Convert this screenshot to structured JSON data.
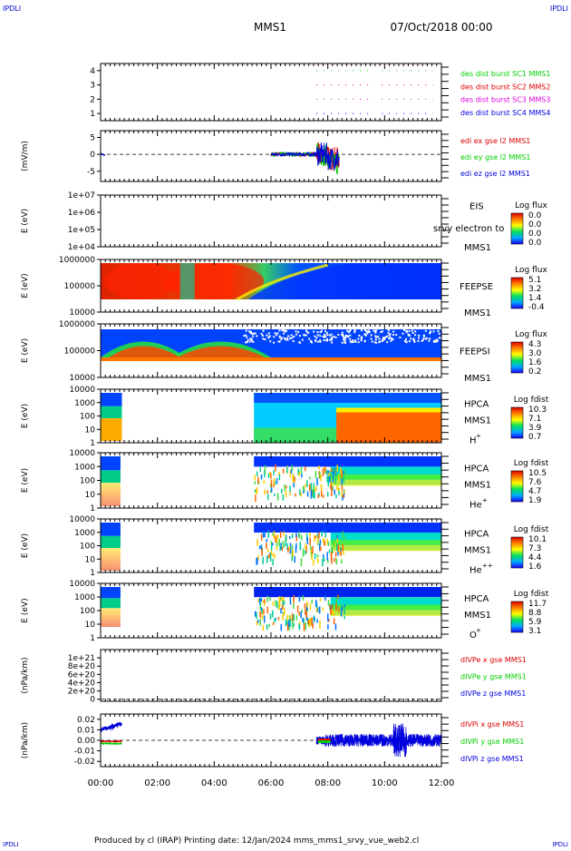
{
  "corner_left": "IPDLI",
  "corner_right": "IPDLI",
  "title": "MMS1",
  "date": "07/Oct/2018 00:00",
  "footer": "Produced by cl (IRAP)   Printing date: 12/Jan/2024   mms_mms1_srvy_vue_web2.cl",
  "x_ticks": [
    "00:00",
    "02:00",
    "04:00",
    "06:00",
    "08:00",
    "10:00",
    "12:00"
  ],
  "chart_data": [
    {
      "type": "line",
      "panel": "burst",
      "x_range_hours": [
        0,
        12
      ],
      "ylim": [
        0.5,
        4.5
      ],
      "yticks": [
        "4",
        "3",
        "2",
        "1"
      ],
      "ylabel": "",
      "series": [
        {
          "name": "des dist burst SC1 MMS1",
          "color": "#00cc00",
          "level": 4,
          "segments": [
            [
              7.6,
              9.5
            ],
            [
              9.9,
              11.7
            ]
          ]
        },
        {
          "name": "des dist burst SC2 MMS2",
          "color": "#dd0000",
          "level": 3,
          "segments": [
            [
              7.6,
              9.5
            ],
            [
              9.9,
              11.7
            ]
          ]
        },
        {
          "name": "des dist burst SC3 MMS3",
          "color": "#dd00dd",
          "level": 2,
          "segments": [
            [
              7.6,
              9.5
            ],
            [
              9.9,
              11.7
            ]
          ]
        },
        {
          "name": "des dist burst SC4 MMS4",
          "color": "#0000dd",
          "level": 1,
          "segments": [
            [
              7.6,
              9.5
            ],
            [
              9.9,
              11.7
            ]
          ]
        }
      ]
    },
    {
      "type": "line",
      "panel": "edi",
      "ylabel": "(mV/m)",
      "ylim": [
        -8,
        7
      ],
      "yticks": [
        "5",
        "0",
        "-5"
      ],
      "series": [
        {
          "name": "edi ex gse l2 MMS1",
          "color": "#dd0000"
        },
        {
          "name": "edi ey gse l2 MMS1",
          "color": "#00cc00"
        },
        {
          "name": "edi ez gse l2 MMS1",
          "color": "#0000dd"
        }
      ]
    },
    {
      "type": "heatmap",
      "panel": "eis",
      "ylabel": "E (eV)",
      "yticks": [
        "1e+07",
        "1e+06",
        "1e+05",
        "1e+04"
      ],
      "labels": [
        "EIS",
        "MMS1"
      ],
      "overlay_text": "srvy electron to",
      "colorbar_title": "Log flux",
      "colorbar_ticks": [
        "0.0",
        "0.0",
        "0.0",
        "0.0"
      ]
    },
    {
      "type": "heatmap",
      "panel": "feepse",
      "ylabel": "E (eV)",
      "yticks": [
        "1000000",
        "100000",
        "10000"
      ],
      "labels": [
        "FEEPSE",
        "MMS1"
      ],
      "colorbar_title": "Log flux",
      "colorbar_ticks": [
        "5.1",
        "3.2",
        "1.4",
        "-0.4"
      ]
    },
    {
      "type": "heatmap",
      "panel": "feepsi",
      "ylabel": "E (eV)",
      "yticks": [
        "1000000",
        "100000",
        "10000"
      ],
      "labels": [
        "FEEPSI",
        "MMS1"
      ],
      "colorbar_title": "Log flux",
      "colorbar_ticks": [
        "4.3",
        "3.0",
        "1.6",
        "0.2"
      ]
    },
    {
      "type": "heatmap",
      "panel": "hpca_h",
      "ylabel": "E (eV)",
      "yticks": [
        "10000",
        "1000",
        "100",
        "10",
        "1"
      ],
      "labels": [
        "HPCA",
        "MMS1"
      ],
      "species": "H",
      "charge": "+",
      "colorbar_title": "Log fdist",
      "colorbar_ticks": [
        "10.3",
        "7.1",
        "3.9",
        "0.7"
      ]
    },
    {
      "type": "heatmap",
      "panel": "hpca_he1",
      "ylabel": "E (eV)",
      "yticks": [
        "10000",
        "1000",
        "100",
        "10",
        "1"
      ],
      "labels": [
        "HPCA",
        "MMS1"
      ],
      "species": "He",
      "charge": "+",
      "colorbar_title": "Log fdist",
      "colorbar_ticks": [
        "10.5",
        "7.6",
        "4.7",
        "1.9"
      ]
    },
    {
      "type": "heatmap",
      "panel": "hpca_he2",
      "ylabel": "E (eV)",
      "yticks": [
        "10000",
        "1000",
        "100",
        "10",
        "1"
      ],
      "labels": [
        "HPCA",
        "MMS1"
      ],
      "species": "He",
      "charge": "++",
      "colorbar_title": "Log fdist",
      "colorbar_ticks": [
        "10.1",
        "7.3",
        "4.4",
        "1.6"
      ]
    },
    {
      "type": "heatmap",
      "panel": "hpca_o",
      "ylabel": "E (eV)",
      "yticks": [
        "10000",
        "1000",
        "100",
        "10",
        "1"
      ],
      "labels": [
        "HPCA",
        "MMS1"
      ],
      "species": "O",
      "charge": "+",
      "colorbar_title": "Log fdist",
      "colorbar_ticks": [
        "11.7",
        "8.8",
        "5.9",
        "3.1"
      ]
    },
    {
      "type": "line",
      "panel": "divpe",
      "ylabel": "(nPa/km)",
      "ylim": [
        -5e+19,
        1.2e+21
      ],
      "yticks": [
        "1e+21",
        "8e+20",
        "6e+20",
        "4e+20",
        "2e+20",
        "0"
      ],
      "series": [
        {
          "name": "dIVPe x gse MMS1",
          "color": "#dd0000"
        },
        {
          "name": "dIVPe y gse MMS1",
          "color": "#00cc00"
        },
        {
          "name": "dIVPe z gse MMS1",
          "color": "#0000dd"
        }
      ]
    },
    {
      "type": "line",
      "panel": "divpi",
      "ylabel": "(nPa/km)",
      "ylim": [
        -0.025,
        0.025
      ],
      "yticks": [
        "0.02",
        "0.01",
        "0.00",
        "-0.01",
        "-0.02"
      ],
      "series": [
        {
          "name": "dIVPi x gse MMS1",
          "color": "#dd0000"
        },
        {
          "name": "dIVPi y gse MMS1",
          "color": "#00cc00"
        },
        {
          "name": "dIVPi z gse MMS1",
          "color": "#0000dd"
        }
      ]
    }
  ]
}
